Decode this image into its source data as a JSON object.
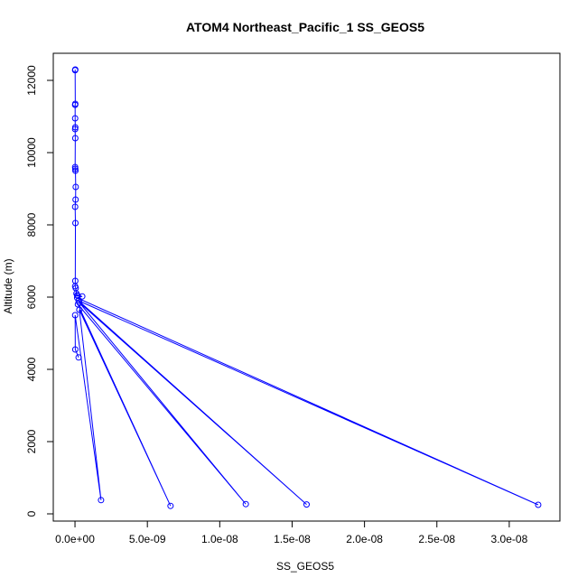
{
  "chart_data": {
    "type": "line",
    "title": "ATOM4 Northeast_Pacific_1 SS_GEOS5",
    "xlabel": "SS_GEOS5",
    "ylabel": "Altitude (m)",
    "xlim": [
      -1.5e-09,
      3.35e-08
    ],
    "ylim": [
      -200,
      12750
    ],
    "xticks": [
      0,
      5e-09,
      1e-08,
      1.5e-08,
      2e-08,
      2.5e-08,
      3e-08
    ],
    "xtick_labels": [
      "0.0e+00",
      "5.0e-09",
      "1.0e-08",
      "1.5e-08",
      "2.0e-08",
      "2.5e-08",
      "3.0e-08"
    ],
    "yticks": [
      0,
      2000,
      4000,
      6000,
      8000,
      10000,
      12000
    ],
    "ytick_labels": [
      "0",
      "2000",
      "4000",
      "6000",
      "8000",
      "10000",
      "12000"
    ],
    "grid": false,
    "legend": "none",
    "series": [
      {
        "line_color": "#0000ff",
        "marker": "open-circle",
        "x": [
          2e-11,
          1e-11,
          2e-11,
          1e-11,
          1e-11,
          2e-11,
          1e-11,
          2e-11,
          1e-11,
          2e-11,
          3e-11,
          5e-11,
          4e-11,
          1e-11,
          3e-11,
          2e-11,
          1e-11,
          5e-11,
          1e-10,
          1.5e-10,
          2e-10,
          5e-10,
          1.5e-10,
          3.2e-08,
          2.5e-10,
          1.6e-08,
          3e-10,
          1.18e-08,
          2e-10,
          6.6e-09,
          3e-10,
          1.8e-09,
          1e-11,
          2e-11,
          2.5e-10
        ],
        "y": [
          12300,
          12280,
          11350,
          11320,
          10950,
          10700,
          10650,
          10400,
          9600,
          9550,
          9500,
          9050,
          8700,
          8500,
          8050,
          6450,
          6300,
          6250,
          6100,
          6050,
          6030,
          6020,
          5980,
          250,
          5900,
          260,
          5850,
          270,
          5800,
          220,
          5650,
          380,
          5500,
          4550,
          4330
        ]
      }
    ]
  }
}
